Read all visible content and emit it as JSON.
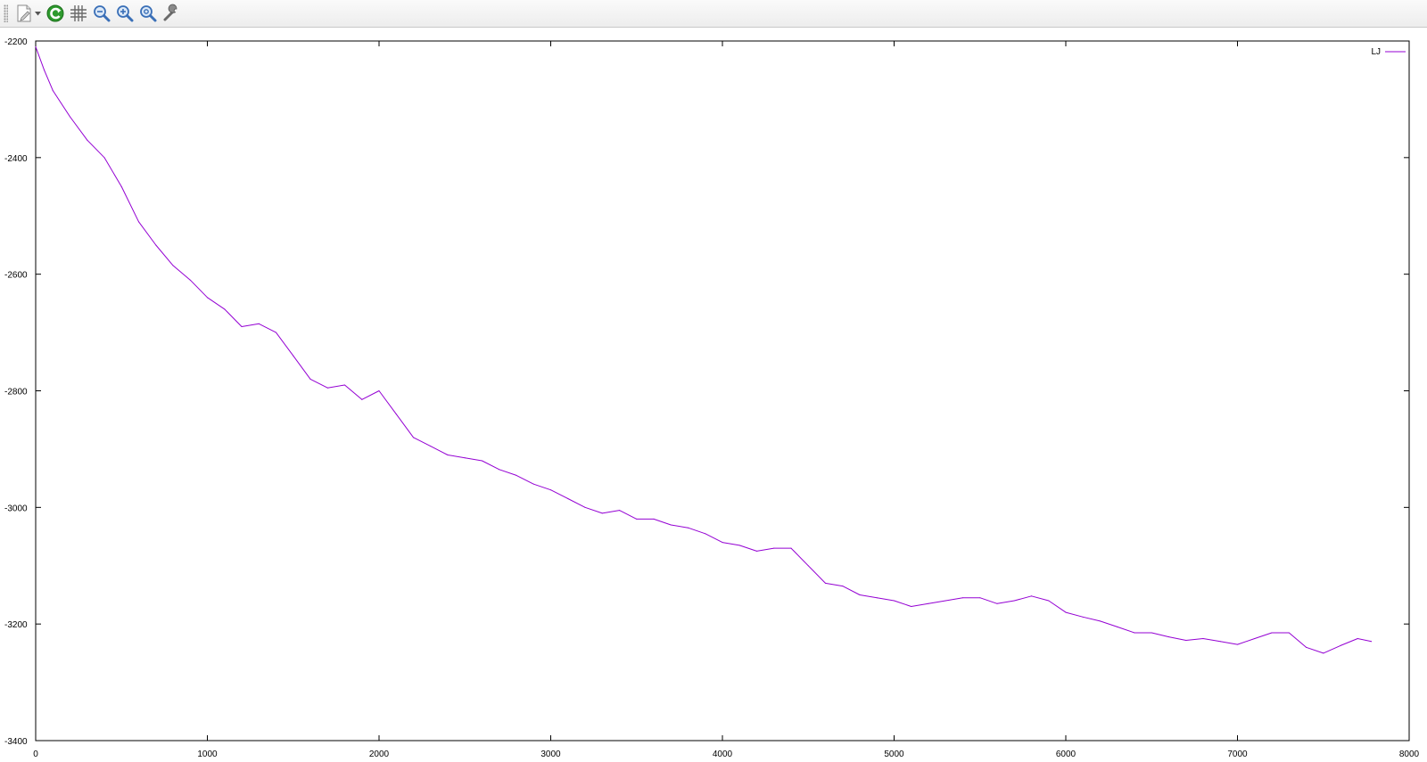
{
  "toolbar": {
    "items": [
      {
        "icon": "export-icon"
      },
      {
        "icon": "replot-icon"
      },
      {
        "icon": "grid-icon"
      },
      {
        "icon": "zoom-prev-icon"
      },
      {
        "icon": "zoom-next-icon"
      },
      {
        "icon": "autoscale-icon"
      },
      {
        "icon": "config-icon"
      }
    ]
  },
  "colors": {
    "series": "#9400d3",
    "replot": "#2e9a2e",
    "zoom": "#3a6fb7"
  },
  "chart_data": {
    "type": "line",
    "title": "",
    "xlabel": "",
    "ylabel": "",
    "xlim": [
      0,
      8000
    ],
    "ylim": [
      -3400,
      -2200
    ],
    "x_ticks": [
      0,
      1000,
      2000,
      3000,
      4000,
      5000,
      6000,
      7000,
      8000
    ],
    "y_ticks": [
      -3400,
      -3200,
      -3000,
      -2800,
      -2600,
      -2400,
      -2200
    ],
    "x_tick_labels": [
      "0",
      "1000",
      "2000",
      "3000",
      "4000",
      "5000",
      "6000",
      "7000",
      "8000"
    ],
    "y_tick_labels": [
      "-3400",
      "-3200",
      "-3000",
      "-2800",
      "-2600",
      "-2400",
      "-2200"
    ],
    "grid": false,
    "legend_position": "top-right",
    "series": [
      {
        "name": "LJ",
        "color": "#9400d3",
        "x": [
          0,
          50,
          100,
          200,
          300,
          400,
          500,
          600,
          700,
          800,
          900,
          1000,
          1100,
          1200,
          1300,
          1400,
          1500,
          1600,
          1700,
          1800,
          1900,
          2000,
          2100,
          2200,
          2300,
          2400,
          2500,
          2600,
          2700,
          2800,
          2900,
          3000,
          3100,
          3200,
          3300,
          3400,
          3500,
          3600,
          3700,
          3800,
          3900,
          4000,
          4100,
          4200,
          4300,
          4400,
          4500,
          4600,
          4700,
          4800,
          4900,
          5000,
          5100,
          5200,
          5300,
          5400,
          5500,
          5600,
          5700,
          5800,
          5900,
          6000,
          6100,
          6200,
          6300,
          6400,
          6500,
          6600,
          6700,
          6800,
          6900,
          7000,
          7100,
          7200,
          7300,
          7400,
          7500,
          7600,
          7700,
          7780
        ],
        "values": [
          -2210,
          -2250,
          -2285,
          -2330,
          -2370,
          -2400,
          -2450,
          -2510,
          -2550,
          -2585,
          -2610,
          -2640,
          -2660,
          -2690,
          -2685,
          -2700,
          -2740,
          -2780,
          -2795,
          -2790,
          -2815,
          -2800,
          -2840,
          -2880,
          -2895,
          -2910,
          -2915,
          -2920,
          -2935,
          -2945,
          -2960,
          -2970,
          -2985,
          -3000,
          -3010,
          -3005,
          -3020,
          -3020,
          -3030,
          -3035,
          -3045,
          -3060,
          -3065,
          -3075,
          -3070,
          -3070,
          -3100,
          -3130,
          -3135,
          -3150,
          -3155,
          -3160,
          -3170,
          -3165,
          -3160,
          -3155,
          -3155,
          -3165,
          -3160,
          -3152,
          -3160,
          -3180,
          -3188,
          -3195,
          -3205,
          -3215,
          -3215,
          -3222,
          -3228,
          -3225,
          -3230,
          -3235,
          -3225,
          -3215,
          -3215,
          -3240,
          -3250,
          -3237,
          -3225,
          -3230
        ]
      }
    ]
  }
}
